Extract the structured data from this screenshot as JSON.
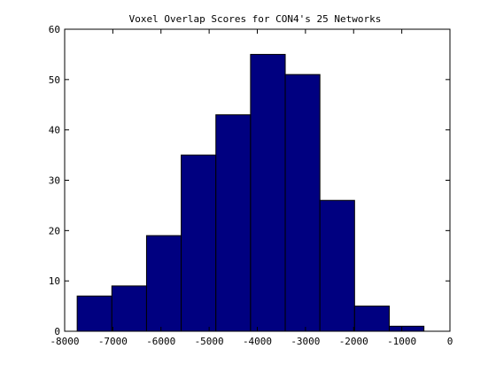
{
  "chart_data": {
    "type": "bar",
    "title": "Voxel Overlap Scores for CON4's 25 Networks",
    "xlabel": "",
    "ylabel": "",
    "xlim": [
      -8000,
      0
    ],
    "ylim": [
      0,
      60
    ],
    "x_ticks": [
      -8000,
      -7000,
      -6000,
      -5000,
      -4000,
      -3000,
      -2000,
      -1000,
      0
    ],
    "x_tick_labels": [
      "-8000",
      "-7000",
      "-6000",
      "-5000",
      "-4000",
      "-3000",
      "-2000",
      "-1000",
      "0"
    ],
    "y_ticks": [
      0,
      10,
      20,
      30,
      40,
      50,
      60
    ],
    "y_tick_labels": [
      "0",
      "10",
      "20",
      "30",
      "40",
      "50",
      "60"
    ],
    "bins": [
      {
        "x0": -7740,
        "x1": -7020,
        "value": 7
      },
      {
        "x0": -7020,
        "x1": -6300,
        "value": 9
      },
      {
        "x0": -6300,
        "x1": -5580,
        "value": 19
      },
      {
        "x0": -5580,
        "x1": -4860,
        "value": 35
      },
      {
        "x0": -4860,
        "x1": -4140,
        "value": 43
      },
      {
        "x0": -4140,
        "x1": -3420,
        "value": 55
      },
      {
        "x0": -3420,
        "x1": -2700,
        "value": 51
      },
      {
        "x0": -2700,
        "x1": -1980,
        "value": 26
      },
      {
        "x0": -1980,
        "x1": -1260,
        "value": 5
      },
      {
        "x0": -1260,
        "x1": -540,
        "value": 1
      }
    ],
    "bar_color": "#000080",
    "grid": false
  }
}
